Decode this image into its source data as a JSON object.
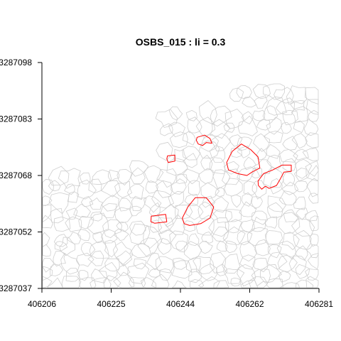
{
  "chart_data": {
    "type": "scatter",
    "title": "OSBS_015 : li = 0.3",
    "xlabel": "",
    "ylabel": "",
    "xlim": [
      406206,
      406281
    ],
    "ylim": [
      3287037,
      3287098
    ],
    "x_ticks": [
      "406206",
      "406225",
      "406244",
      "406262",
      "406281"
    ],
    "y_ticks": [
      "3287037",
      "3287052",
      "3287068",
      "3287083",
      "3287098"
    ],
    "grid": false,
    "colors": {
      "highlighted": "#ff0000",
      "background": "#cfcfcf",
      "axis": "#000000"
    },
    "highlighted_crowns": [
      {
        "outline": [
          [
            406248.0,
            3287077.8
          ],
          [
            406250.0,
            3287078.4
          ],
          [
            406251.5,
            3287077.5
          ],
          [
            406252.0,
            3287076.2
          ],
          [
            406250.5,
            3287076.4
          ],
          [
            406249.5,
            3287075.6
          ],
          [
            406248.3,
            3287076.0
          ],
          [
            406247.8,
            3287077.0
          ]
        ]
      },
      {
        "outline": [
          [
            406240.0,
            3287072.8
          ],
          [
            406242.0,
            3287073.0
          ],
          [
            406242.0,
            3287071.4
          ],
          [
            406240.2,
            3287071.0
          ],
          [
            406239.8,
            3287072.0
          ]
        ]
      },
      {
        "outline": [
          [
            406256.0,
            3287071.0
          ],
          [
            406257.5,
            3287074.0
          ],
          [
            406260.0,
            3287076.0
          ],
          [
            406262.5,
            3287074.5
          ],
          [
            406264.5,
            3287072.5
          ],
          [
            406265.0,
            3287069.5
          ],
          [
            406263.0,
            3287068.5
          ],
          [
            406261.5,
            3287067.5
          ],
          [
            406259.0,
            3287068.0
          ],
          [
            406256.5,
            3287069.0
          ]
        ]
      },
      {
        "outline": [
          [
            406264.5,
            3287066.0
          ],
          [
            406266.0,
            3287068.0
          ],
          [
            406268.5,
            3287069.0
          ],
          [
            406271.0,
            3287070.3
          ],
          [
            406273.5,
            3287070.3
          ],
          [
            406273.5,
            3287068.6
          ],
          [
            406271.5,
            3287068.4
          ],
          [
            406270.5,
            3287066.5
          ],
          [
            406269.5,
            3287064.8
          ],
          [
            406267.5,
            3287064.0
          ],
          [
            406266.5,
            3287064.6
          ],
          [
            406265.5,
            3287063.8
          ],
          [
            406264.6,
            3287064.8
          ]
        ]
      },
      {
        "outline": [
          [
            406244.0,
            3287056.0
          ],
          [
            406245.5,
            3287059.0
          ],
          [
            406247.5,
            3287061.5
          ],
          [
            406250.5,
            3287061.5
          ],
          [
            406252.5,
            3287059.0
          ],
          [
            406251.5,
            3287056.0
          ],
          [
            406249.0,
            3287054.5
          ],
          [
            406246.0,
            3287054.0
          ],
          [
            406244.5,
            3287054.5
          ]
        ]
      },
      {
        "outline": [
          [
            406235.6,
            3287056.5
          ],
          [
            406239.5,
            3287057.0
          ],
          [
            406239.8,
            3287055.0
          ],
          [
            406236.5,
            3287054.6
          ],
          [
            406235.5,
            3287055.0
          ]
        ]
      }
    ]
  }
}
